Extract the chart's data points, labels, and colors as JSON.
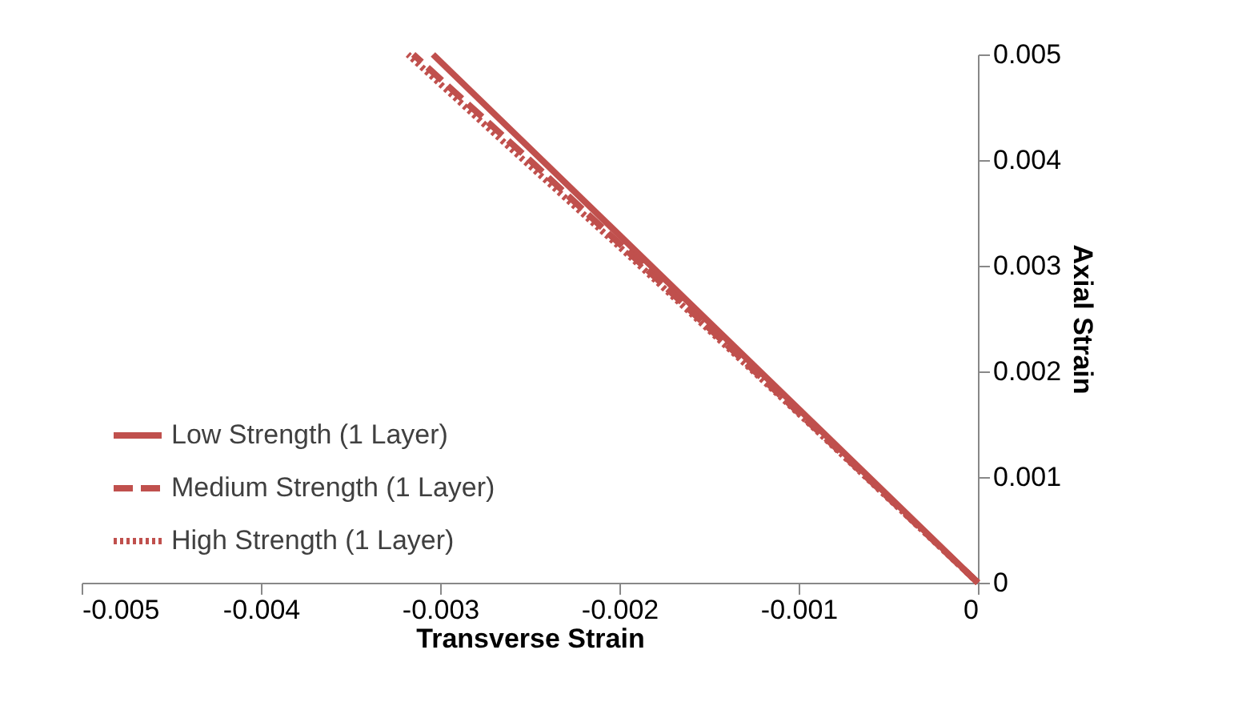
{
  "chart_data": {
    "type": "line",
    "xlabel": "Transverse Strain",
    "ylabel": "Axial Strain",
    "xlim": [
      -0.005,
      0
    ],
    "xticks": [
      -0.005,
      -0.004,
      -0.003,
      -0.002,
      -0.001,
      0
    ],
    "ylim": [
      0,
      0.005
    ],
    "yticks": [
      0,
      0.001,
      0.002,
      0.003,
      0.004,
      0.005
    ],
    "grid": false,
    "legend": "bottom left",
    "marker": "none",
    "series": [
      {
        "name": "Low Strength (1 Layer)",
        "color": "#c0504d",
        "line_style": "solid",
        "x": [
          0,
          -0.00304
        ],
        "values": [
          0,
          0.005
        ]
      },
      {
        "name": "Medium Strength (1 Layer)",
        "color": "#c0504d",
        "line_style": "dashed",
        "x": [
          0,
          -0.001,
          -0.002,
          -0.0025,
          -0.00315
        ],
        "values": [
          0,
          0.00161,
          0.00321,
          0.004,
          0.005
        ]
      },
      {
        "name": "High Strength (1 Layer)",
        "color": "#c0504d",
        "line_style": "dotted",
        "x": [
          0,
          -0.001,
          -0.002,
          -0.0026,
          -0.00318
        ],
        "values": [
          0,
          0.0016,
          0.00318,
          0.0041,
          0.005
        ]
      }
    ]
  }
}
